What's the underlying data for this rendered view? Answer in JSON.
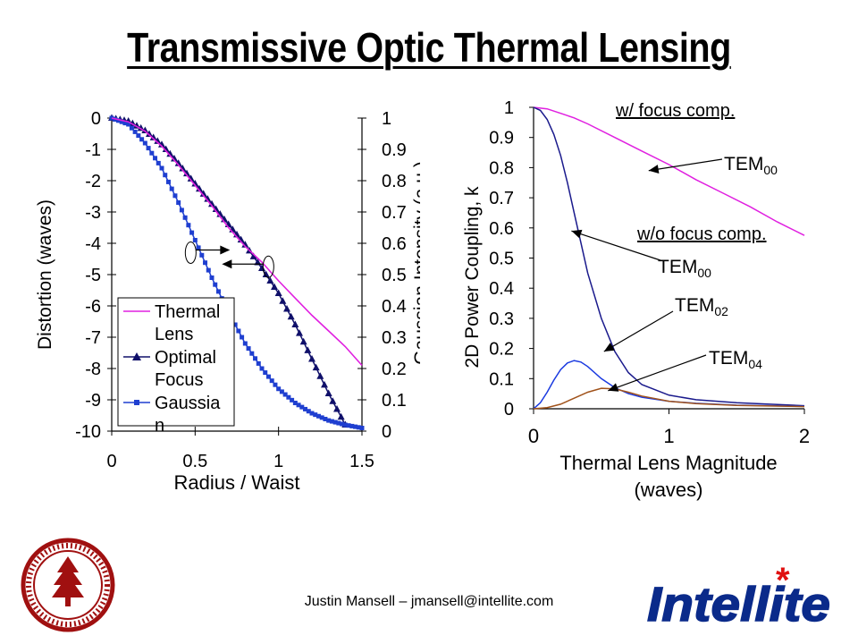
{
  "title": "Transmissive Optic Thermal Lensing",
  "footer": "Justin Mansell – jmansell@intellite.com",
  "logo_text": "Intellite",
  "seal_text": "LELAND STANFORD JUNIOR UNIVERSITY · ORGANIZED 1891",
  "colors": {
    "thermal_lens": "#e020e0",
    "optimal_focus": "#10106a",
    "gaussian": "#1f3fd0",
    "tem00_focus": "#e020e0",
    "tem00_nofocus": "#1a1a8c",
    "tem02": "#1a3ae0",
    "tem04": "#a0521a",
    "seal": "#a01010",
    "logo": "#0a2a8a",
    "logo_star": "#e01010"
  },
  "chart_data": [
    {
      "type": "line",
      "xlabel": "Radius / Waist",
      "ylabel": "Distortion (waves)",
      "y2label": "Gaussian Intensity (a.u.)",
      "xlim": [
        0,
        1.5
      ],
      "ylim": [
        -10,
        0
      ],
      "y2lim": [
        0,
        1
      ],
      "xticks": [
        "0",
        "0.5",
        "1",
        "1.5"
      ],
      "yticks": [
        "0",
        "-1",
        "-2",
        "-3",
        "-4",
        "-5",
        "-6",
        "-7",
        "-8",
        "-9",
        "-10"
      ],
      "y2ticks": [
        "1",
        "0.9",
        "0.8",
        "0.7",
        "0.6",
        "0.5",
        "0.4",
        "0.3",
        "0.2",
        "0.1",
        "0"
      ],
      "legend": [
        {
          "label": "Thermal Lens",
          "series": "Thermal Lens"
        },
        {
          "label": "Optimal Focus",
          "series": "Optimal Focus"
        },
        {
          "label": "Gaussia n",
          "series": "Gaussian"
        }
      ],
      "series": [
        {
          "name": "Thermal Lens",
          "axis": "left",
          "marker": "none",
          "x": [
            0,
            0.1,
            0.2,
            0.3,
            0.4,
            0.5,
            0.6,
            0.7,
            0.8,
            0.9,
            1.0,
            1.1,
            1.2,
            1.3,
            1.4,
            1.5
          ],
          "y": [
            0,
            -0.12,
            -0.42,
            -0.9,
            -1.5,
            -2.15,
            -2.8,
            -3.5,
            -4.1,
            -4.6,
            -5.2,
            -5.75,
            -6.3,
            -6.8,
            -7.3,
            -7.9
          ]
        },
        {
          "name": "Optimal Focus",
          "axis": "left",
          "marker": "triangle",
          "x": [
            0,
            0.1,
            0.2,
            0.3,
            0.4,
            0.5,
            0.6,
            0.7,
            0.8,
            0.9,
            1.0,
            1.1,
            1.2,
            1.3,
            1.4
          ],
          "y": [
            0,
            -0.1,
            -0.4,
            -0.85,
            -1.45,
            -2.1,
            -2.75,
            -3.4,
            -4.05,
            -4.8,
            -5.6,
            -6.6,
            -7.7,
            -8.8,
            -9.8
          ]
        },
        {
          "name": "Gaussian",
          "axis": "right",
          "marker": "square",
          "x": [
            0,
            0.1,
            0.2,
            0.3,
            0.4,
            0.5,
            0.6,
            0.7,
            0.8,
            0.9,
            1.0,
            1.1,
            1.2,
            1.3,
            1.4,
            1.5
          ],
          "y": [
            1.0,
            0.98,
            0.92,
            0.84,
            0.73,
            0.61,
            0.49,
            0.38,
            0.28,
            0.2,
            0.135,
            0.09,
            0.057,
            0.034,
            0.02,
            0.01
          ]
        }
      ],
      "annotations": [
        {
          "type": "arrow-right",
          "x": 0.5,
          "y": -4.3
        },
        {
          "type": "arrow-left",
          "x": 0.95,
          "y": -4.7
        }
      ]
    },
    {
      "type": "line",
      "xlabel": "Thermal Lens Magnitude (waves)",
      "ylabel": "2D Power Coupling, k",
      "xlim": [
        0,
        2
      ],
      "ylim": [
        0,
        1
      ],
      "xticks": [
        "0",
        "1",
        "2"
      ],
      "yticks": [
        "1",
        "0.9",
        "0.8",
        "0.7",
        "0.6",
        "0.5",
        "0.4",
        "0.3",
        "0.2",
        "0.1",
        "0"
      ],
      "series": [
        {
          "name": "TEM00 w/ focus comp.",
          "x": [
            0,
            0.1,
            0.2,
            0.3,
            0.4,
            0.6,
            0.8,
            1.0,
            1.2,
            1.4,
            1.6,
            1.8,
            2.0
          ],
          "y": [
            1.0,
            0.995,
            0.98,
            0.965,
            0.945,
            0.9,
            0.855,
            0.81,
            0.76,
            0.715,
            0.67,
            0.62,
            0.575
          ]
        },
        {
          "name": "TEM00 w/o focus comp.",
          "x": [
            0,
            0.05,
            0.1,
            0.15,
            0.2,
            0.25,
            0.3,
            0.35,
            0.4,
            0.5,
            0.6,
            0.7,
            0.8,
            1.0,
            1.2,
            1.5,
            2.0
          ],
          "y": [
            1.0,
            0.99,
            0.96,
            0.91,
            0.84,
            0.75,
            0.65,
            0.55,
            0.45,
            0.3,
            0.19,
            0.12,
            0.08,
            0.045,
            0.03,
            0.02,
            0.01
          ]
        },
        {
          "name": "TEM02",
          "x": [
            0,
            0.05,
            0.1,
            0.15,
            0.2,
            0.25,
            0.3,
            0.35,
            0.4,
            0.5,
            0.6,
            0.7,
            0.8,
            1.0,
            1.2,
            1.5,
            2.0
          ],
          "y": [
            0,
            0.02,
            0.055,
            0.095,
            0.13,
            0.152,
            0.16,
            0.155,
            0.14,
            0.1,
            0.07,
            0.05,
            0.038,
            0.025,
            0.018,
            0.012,
            0.008
          ]
        },
        {
          "name": "TEM04",
          "x": [
            0,
            0.1,
            0.2,
            0.3,
            0.4,
            0.5,
            0.6,
            0.7,
            0.8,
            1.0,
            1.2,
            1.5,
            2.0
          ],
          "y": [
            0,
            0.004,
            0.015,
            0.035,
            0.055,
            0.068,
            0.066,
            0.055,
            0.042,
            0.025,
            0.017,
            0.011,
            0.007
          ]
        }
      ],
      "annotations": [
        {
          "text": "w/ focus comp.",
          "style": "underline"
        },
        {
          "text": "w/o focus comp.",
          "style": "underline"
        },
        {
          "text": "TEM",
          "sub": "00",
          "points_to": "TEM00 w/ focus comp."
        },
        {
          "text": "TEM",
          "sub": "00",
          "points_to": "TEM00 w/o focus comp."
        },
        {
          "text": "TEM",
          "sub": "02",
          "points_to": "TEM02"
        },
        {
          "text": "TEM",
          "sub": "04",
          "points_to": "TEM04"
        }
      ]
    }
  ]
}
